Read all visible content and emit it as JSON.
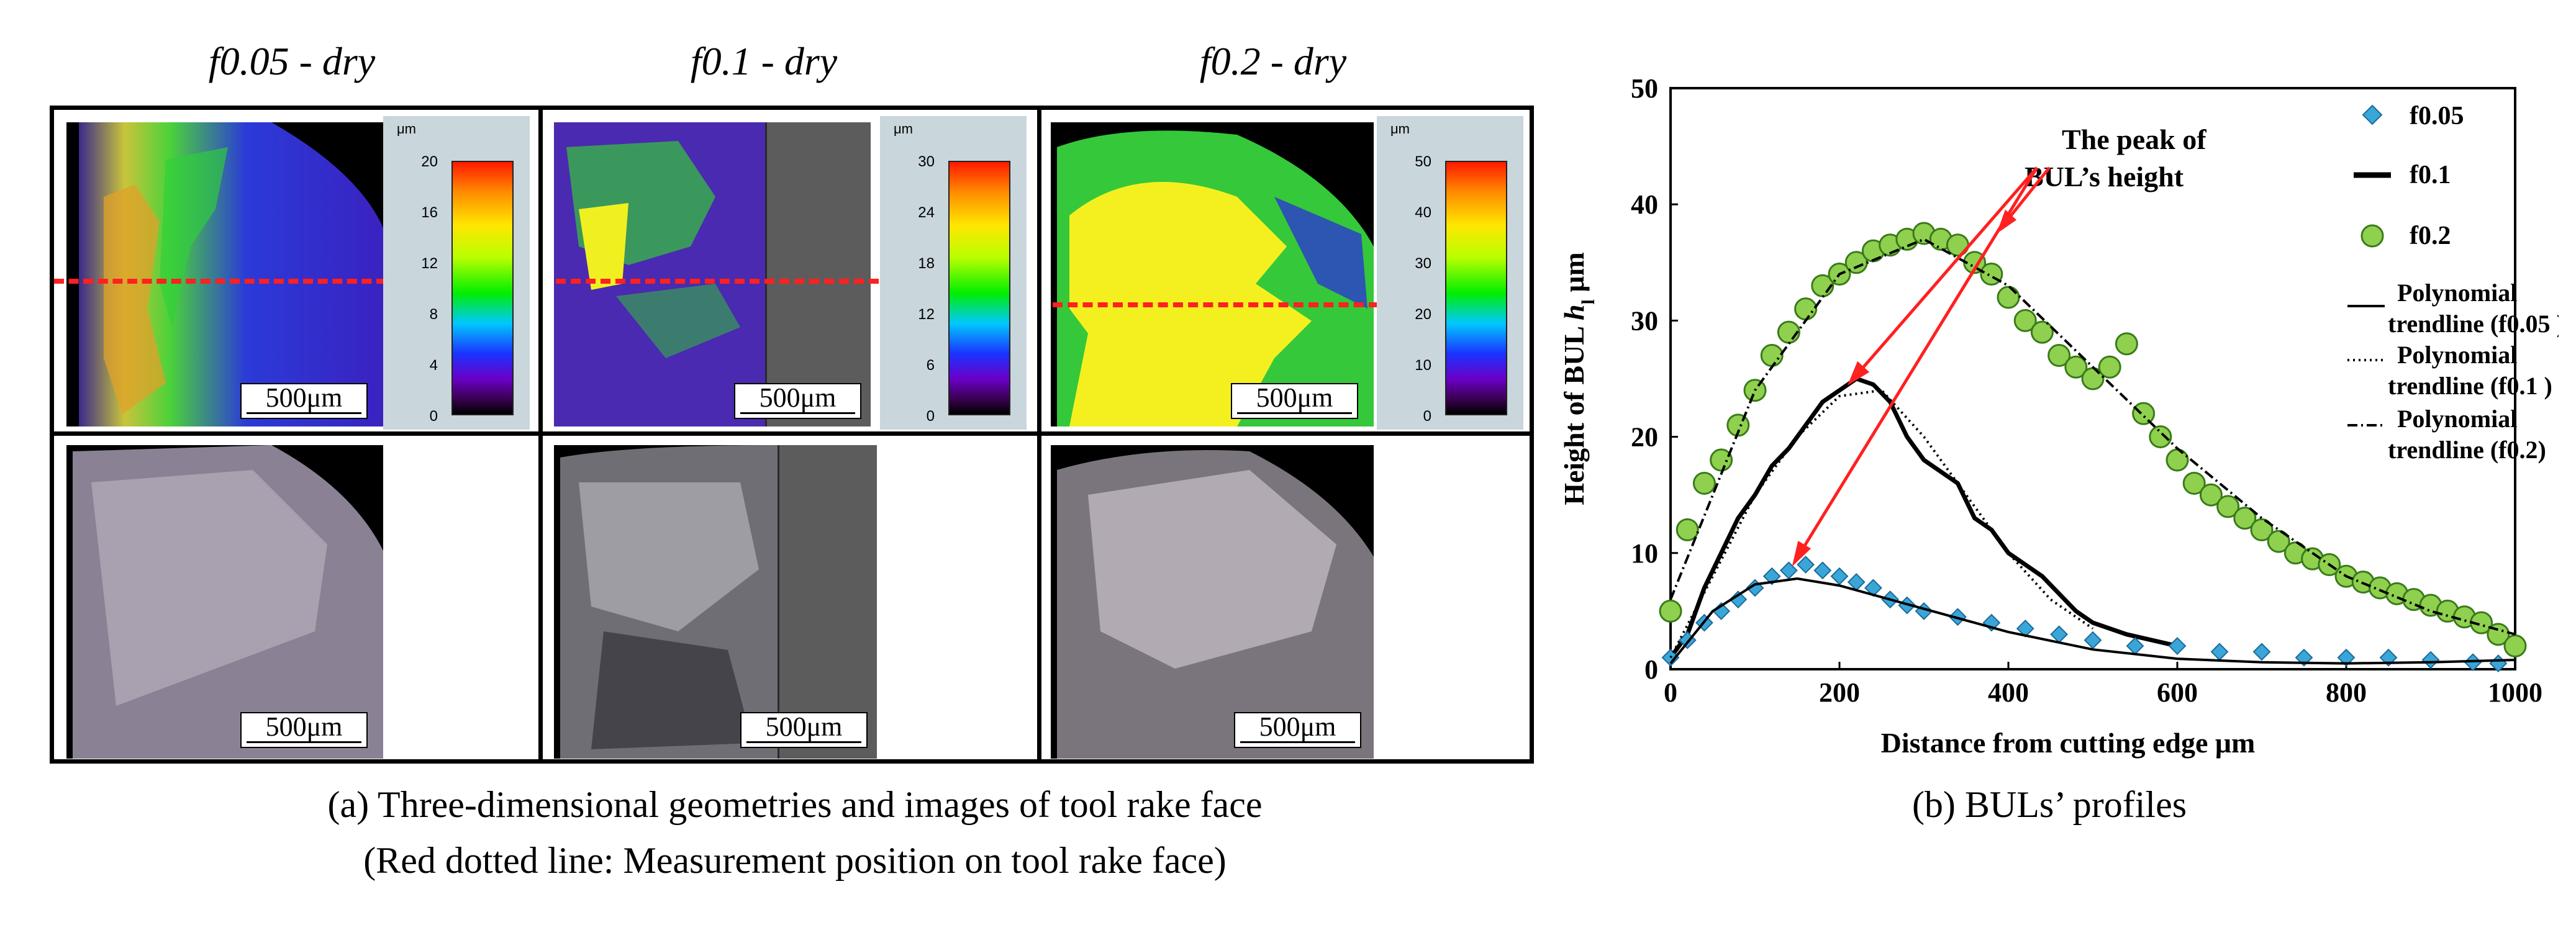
{
  "panel_a": {
    "column_titles": [
      "f0.05 - dry",
      "f0.1 - dry",
      "f0.2 - dry"
    ],
    "colorbars": [
      {
        "unit": "μm",
        "ticks": [
          "20",
          "16",
          "12",
          "8",
          "4",
          "0"
        ]
      },
      {
        "unit": "μm",
        "ticks": [
          "30",
          "24",
          "18",
          "12",
          "6",
          "0"
        ]
      },
      {
        "unit": "μm",
        "ticks": [
          "50",
          "40",
          "30",
          "20",
          "10",
          "0"
        ]
      }
    ],
    "scale_label": "500μm",
    "caption_line1": "(a) Three-dimensional geometries and images of tool rake face",
    "caption_line2": "(Red dotted line: Measurement position on tool rake face)",
    "colors": {
      "red_line": "#ff2020",
      "gray_block": "#5c5c5c",
      "panel_bg": "#c9d6db"
    }
  },
  "panel_b": {
    "caption": "(b) BULs’ profiles",
    "annotation_line1": "The peak of",
    "annotation_line2": "BUL’s height"
  },
  "chart_data": {
    "type": "scatter",
    "xlabel": "Distance from cutting edge μm",
    "ylabel_prefix": "Height of BUL ",
    "ylabel_var": "h",
    "ylabel_sub": "l",
    "ylabel_suffix": " μm",
    "xlim": [
      0,
      1000
    ],
    "ylim": [
      0,
      50
    ],
    "xticks": [
      "0",
      "200",
      "400",
      "600",
      "800",
      "1000"
    ],
    "yticks": [
      "0",
      "10",
      "20",
      "30",
      "40",
      "50"
    ],
    "legend_position": "top-right",
    "legend": [
      {
        "label": "f0.05",
        "marker": "diamond",
        "color": "#3aa6d8"
      },
      {
        "label": "f0.1",
        "marker": "thick-line",
        "color": "#000000"
      },
      {
        "label": "f0.2",
        "marker": "circle",
        "color": "#8fd14f"
      },
      {
        "label_line1": "Polynomial",
        "label_line2": "trendline (f0.05 )",
        "marker": "solid-line"
      },
      {
        "label_line1": "Polynomial",
        "label_line2": "trendline (f0.1 )",
        "marker": "dotted-line"
      },
      {
        "label_line1": "Polynomial",
        "label_line2": "trendline (f0.2)",
        "marker": "dash-dot-line"
      }
    ],
    "series": [
      {
        "name": "f0.05",
        "x": [
          0,
          20,
          40,
          60,
          80,
          100,
          120,
          140,
          160,
          180,
          200,
          220,
          240,
          260,
          280,
          300,
          340,
          380,
          420,
          460,
          500,
          550,
          600,
          650,
          700,
          750,
          800,
          850,
          900,
          950,
          980
        ],
        "y": [
          1,
          2.5,
          4,
          5,
          6,
          7,
          8,
          8.5,
          9,
          8.5,
          8,
          7.5,
          7,
          6,
          5.5,
          5,
          4.5,
          4,
          3.5,
          3,
          2.5,
          2,
          2,
          1.5,
          1.5,
          1,
          1,
          1,
          0.8,
          0.6,
          0.5
        ]
      },
      {
        "name": "f0.1",
        "x": [
          0,
          20,
          40,
          60,
          80,
          100,
          120,
          140,
          160,
          180,
          200,
          220,
          240,
          260,
          280,
          300,
          320,
          340,
          360,
          380,
          400,
          420,
          440,
          460,
          480,
          500,
          540,
          600
        ],
        "y": [
          1,
          3,
          7,
          10,
          13,
          15,
          17.5,
          19,
          21,
          23,
          24,
          25,
          24.5,
          23,
          20,
          18,
          17,
          16,
          13,
          12,
          10,
          9,
          8,
          6.5,
          5,
          4,
          3,
          2
        ]
      },
      {
        "name": "f0.2",
        "x": [
          0,
          20,
          40,
          60,
          80,
          100,
          120,
          140,
          160,
          180,
          200,
          220,
          240,
          260,
          280,
          300,
          320,
          340,
          360,
          380,
          400,
          420,
          440,
          460,
          480,
          500,
          520,
          540,
          560,
          580,
          600,
          620,
          640,
          660,
          680,
          700,
          720,
          740,
          760,
          780,
          800,
          820,
          840,
          860,
          880,
          900,
          920,
          940,
          960,
          980,
          1000
        ],
        "y": [
          5,
          12,
          16,
          18,
          21,
          24,
          27,
          29,
          31,
          33,
          34,
          35,
          36,
          36.5,
          37,
          37.5,
          37,
          36.5,
          35,
          34,
          32,
          30,
          29,
          27,
          26,
          25,
          26,
          28,
          22,
          20,
          18,
          16,
          15,
          14,
          13,
          12,
          11,
          10,
          9.5,
          9,
          8,
          7.5,
          7,
          6.5,
          6,
          5.5,
          5,
          4.5,
          4,
          3,
          2
        ]
      },
      {
        "name": "Polynomial trendline (f0.05 )",
        "x": [
          0,
          50,
          100,
          150,
          200,
          300,
          400,
          500,
          600,
          700,
          800,
          900,
          1000
        ],
        "y": [
          0.5,
          5,
          7.3,
          7.8,
          7.2,
          5.2,
          3.2,
          1.7,
          0.9,
          0.6,
          0.5,
          0.6,
          0.8
        ]
      },
      {
        "name": "Polynomial trendline (f0.1 )",
        "x": [
          0,
          50,
          100,
          150,
          200,
          250,
          300,
          350,
          400,
          450,
          500
        ],
        "y": [
          1,
          8,
          15,
          20,
          23.5,
          24,
          20,
          15,
          10,
          6,
          3.5
        ]
      },
      {
        "name": "Polynomial trendline (f0.2)",
        "x": [
          0,
          100,
          200,
          300,
          400,
          500,
          600,
          700,
          800,
          900,
          1000
        ],
        "y": [
          6,
          24,
          34,
          37,
          33,
          26,
          19,
          13,
          8,
          5,
          3
        ]
      }
    ]
  }
}
